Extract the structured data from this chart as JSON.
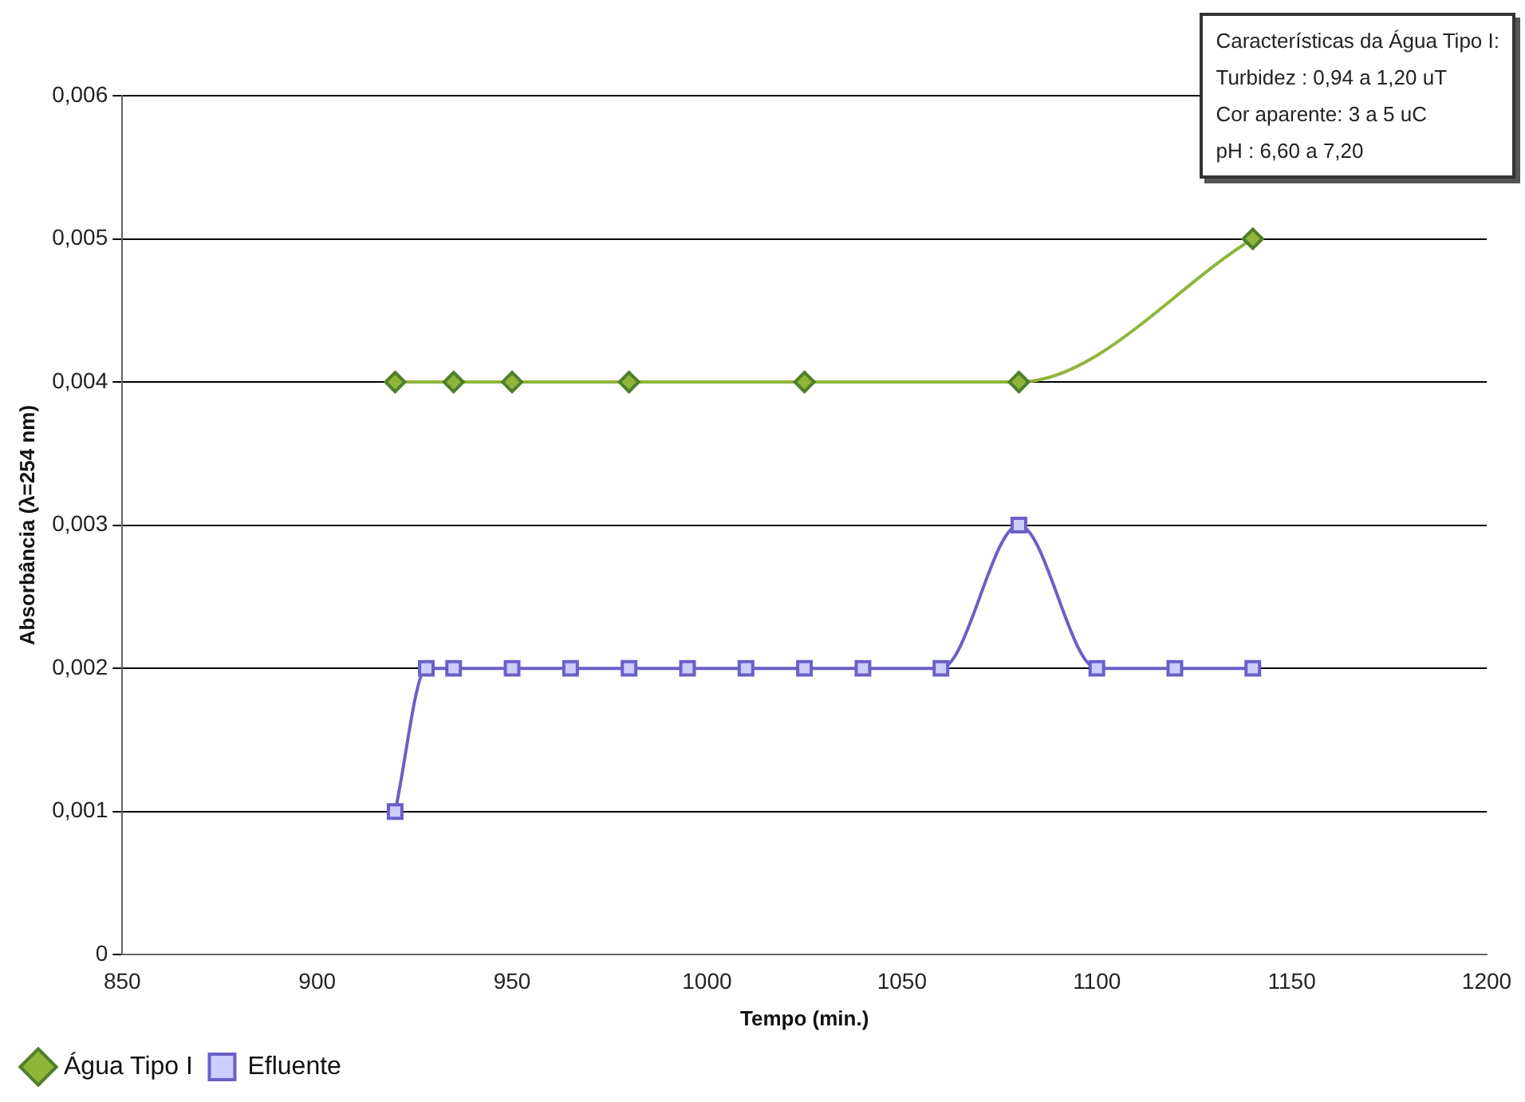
{
  "chart_data": {
    "type": "line",
    "xlabel": "Tempo (min.)",
    "ylabel": "Absorbância (λ=254 nm)",
    "annotations": [
      "Características da Água Tipo I:",
      "Turbidez : 0,94 a 1,20  uT",
      "Cor aparente: 3 a 5 uC",
      "pH : 6,60 a 7,20"
    ],
    "xlim": [
      850,
      1200
    ],
    "xticks": [
      850,
      900,
      950,
      1000,
      1050,
      1100,
      1150,
      1200
    ],
    "ylim": [
      0,
      0.006
    ],
    "yticks": [
      {
        "value": 0,
        "label": "0"
      },
      {
        "value": 0.001,
        "label": "0,001"
      },
      {
        "value": 0.002,
        "label": "0,002"
      },
      {
        "value": 0.003,
        "label": "0,003"
      },
      {
        "value": 0.004,
        "label": "0,004"
      },
      {
        "value": 0.005,
        "label": "0,005"
      },
      {
        "value": 0.006,
        "label": "0,006"
      }
    ],
    "grid": "y",
    "legend": "bottom left",
    "series": [
      {
        "name": "Água Tipo I",
        "color": "#8fb53a",
        "marker": "diamond",
        "x": [
          920,
          935,
          950,
          980,
          1025,
          1080,
          1140
        ],
        "values": [
          0.004,
          0.004,
          0.004,
          0.004,
          0.004,
          0.004,
          0.005
        ]
      },
      {
        "name": "Efluente",
        "color": "#6b5fc8",
        "marker": "square",
        "x": [
          920,
          928,
          935,
          950,
          965,
          980,
          995,
          1010,
          1025,
          1040,
          1060,
          1080,
          1100,
          1120,
          1140
        ],
        "values": [
          0.001,
          0.002,
          0.002,
          0.002,
          0.002,
          0.002,
          0.002,
          0.002,
          0.002,
          0.002,
          0.002,
          0.003,
          0.002,
          0.002,
          0.002
        ]
      }
    ]
  }
}
